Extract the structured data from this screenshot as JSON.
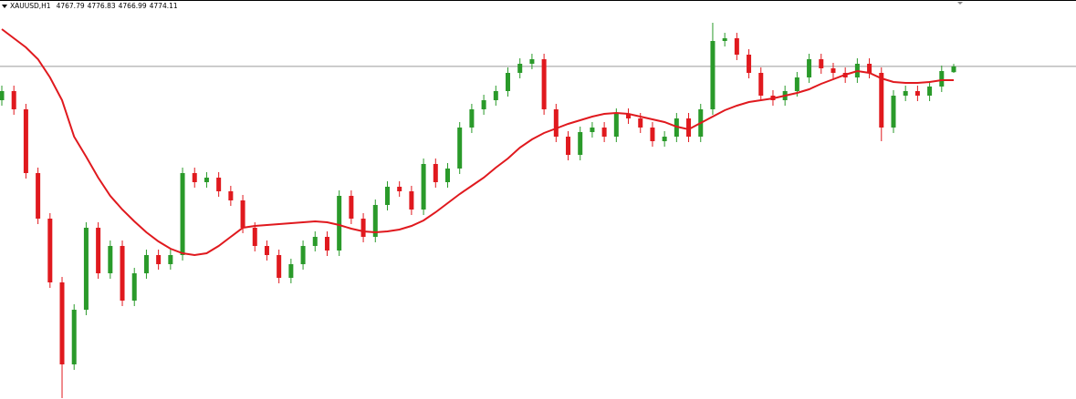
{
  "chart_data": {
    "type": "candlestick",
    "title": "XAUUSD,H1",
    "up_color": "#2a9a2a",
    "down_color": "#e0191e",
    "price_line_color": "#9a9a9a",
    "ylim": [
      4409,
      4847
    ],
    "open": [
      4737,
      4747,
      4727,
      4657,
      4607,
      4537,
      4447,
      4507,
      4597,
      4547,
      4577,
      4517,
      4547,
      4567,
      4557,
      4567,
      4657,
      4647,
      4652,
      4637,
      4627,
      4597,
      4577,
      4567,
      4542,
      4557,
      4577,
      4587,
      4572,
      4632,
      4607,
      4587,
      4622,
      4642,
      4637,
      4617,
      4667,
      4647,
      4662,
      4707,
      4727,
      4737,
      4747,
      4767,
      4777,
      4782,
      4727,
      4697,
      4677,
      4702,
      4707,
      4697,
      4722,
      4717,
      4707,
      4692,
      4697,
      4717,
      4697,
      4727,
      4802,
      4805,
      4787,
      4767,
      4742,
      4737,
      4747,
      4762,
      4782,
      4772,
      4767,
      4762,
      4777,
      4767,
      4707,
      4742,
      4747,
      4742,
      4752,
      4767.79
    ],
    "high": [
      4753,
      4753,
      4733,
      4663,
      4613,
      4543,
      4513,
      4603,
      4603,
      4583,
      4583,
      4553,
      4573,
      4573,
      4573,
      4663,
      4663,
      4658,
      4658,
      4643,
      4633,
      4603,
      4583,
      4573,
      4563,
      4583,
      4593,
      4593,
      4638,
      4638,
      4613,
      4628,
      4648,
      4648,
      4643,
      4673,
      4673,
      4668,
      4713,
      4733,
      4743,
      4753,
      4773,
      4783,
      4788,
      4788,
      4733,
      4703,
      4708,
      4713,
      4713,
      4728,
      4728,
      4723,
      4713,
      4703,
      4723,
      4723,
      4733,
      4822,
      4811,
      4811,
      4793,
      4773,
      4748,
      4753,
      4768,
      4788,
      4788,
      4778,
      4773,
      4783,
      4783,
      4773,
      4748,
      4753,
      4753,
      4758,
      4775,
      4776.83
    ],
    "low": [
      4731,
      4721,
      4651,
      4601,
      4531,
      4410,
      4441,
      4501,
      4541,
      4541,
      4511,
      4511,
      4541,
      4551,
      4551,
      4561,
      4641,
      4641,
      4631,
      4621,
      4591,
      4571,
      4561,
      4536,
      4536,
      4551,
      4571,
      4566,
      4566,
      4601,
      4581,
      4581,
      4616,
      4631,
      4611,
      4611,
      4641,
      4641,
      4656,
      4701,
      4721,
      4731,
      4741,
      4761,
      4771,
      4721,
      4691,
      4671,
      4671,
      4696,
      4691,
      4691,
      4711,
      4701,
      4686,
      4686,
      4691,
      4691,
      4691,
      4721,
      4796,
      4781,
      4761,
      4736,
      4731,
      4731,
      4741,
      4756,
      4766,
      4761,
      4756,
      4756,
      4761,
      4692,
      4701,
      4736,
      4736,
      4736,
      4746,
      4766.99
    ],
    "close": [
      4747,
      4727,
      4657,
      4607,
      4537,
      4447,
      4507,
      4597,
      4547,
      4577,
      4517,
      4547,
      4567,
      4557,
      4567,
      4657,
      4647,
      4652,
      4637,
      4627,
      4597,
      4577,
      4567,
      4542,
      4557,
      4577,
      4587,
      4572,
      4632,
      4607,
      4587,
      4622,
      4642,
      4637,
      4617,
      4667,
      4647,
      4662,
      4707,
      4727,
      4737,
      4747,
      4767,
      4777,
      4782,
      4727,
      4697,
      4677,
      4702,
      4707,
      4697,
      4722,
      4717,
      4707,
      4692,
      4697,
      4717,
      4697,
      4727,
      4802,
      4805,
      4787,
      4767,
      4742,
      4737,
      4747,
      4762,
      4782,
      4772,
      4767,
      4762,
      4777,
      4767,
      4707,
      4742,
      4747,
      4742,
      4752,
      4769,
      4774.11
    ],
    "ma": {
      "color": "#e0191e",
      "values": [
        4815,
        4805,
        4795,
        4782,
        4762,
        4737,
        4697,
        4675,
        4652,
        4632,
        4617,
        4604,
        4592,
        4582,
        4574,
        4569,
        4567,
        4569,
        4577,
        4587,
        4597,
        4599,
        4600,
        4601,
        4602,
        4603,
        4604,
        4603,
        4600,
        4596,
        4593,
        4592,
        4593,
        4595,
        4599,
        4605,
        4614,
        4624,
        4634,
        4643,
        4652,
        4663,
        4673,
        4685,
        4694,
        4701,
        4706,
        4711,
        4715,
        4719,
        4722,
        4723,
        4722,
        4719,
        4716,
        4713,
        4708,
        4705,
        4712,
        4719,
        4726,
        4731,
        4735,
        4737,
        4739,
        4742,
        4745,
        4749,
        4755,
        4760,
        4765,
        4769,
        4767,
        4761,
        4757,
        4756,
        4756,
        4757,
        4759,
        4759
      ]
    }
  }
}
